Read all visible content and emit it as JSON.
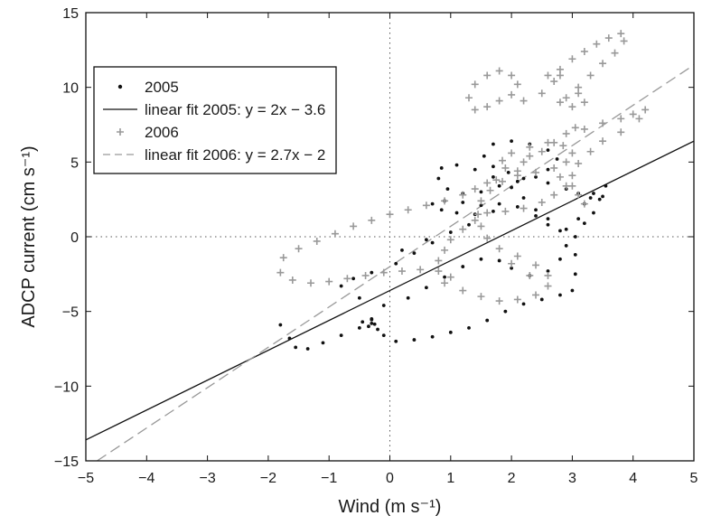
{
  "chart_data": {
    "type": "scatter",
    "xlabel": "Wind (m s⁻¹)",
    "ylabel": "ADCP current (cm s⁻¹)",
    "xlim": [
      -5,
      5
    ],
    "ylim": [
      -15,
      15
    ],
    "xticks": [
      -5,
      -4,
      -3,
      -2,
      -1,
      0,
      1,
      2,
      3,
      4,
      5
    ],
    "yticks": [
      -15,
      -10,
      -5,
      0,
      5,
      10,
      15
    ],
    "xtick_labels": [
      "−5",
      "−4",
      "−3",
      "−2",
      "−1",
      "0",
      "1",
      "2",
      "3",
      "4",
      "5"
    ],
    "ytick_labels": [
      "−15",
      "−10",
      "−5",
      "0",
      "5",
      "10",
      "15"
    ],
    "grid": false,
    "reference_lines": [
      {
        "axis": "x",
        "value": 0,
        "style": "dotted"
      },
      {
        "axis": "y",
        "value": 0,
        "style": "dotted"
      }
    ],
    "legend": {
      "position": "upper-left",
      "entries": [
        {
          "label": "2005",
          "marker": "dot",
          "color": "#111111"
        },
        {
          "label": "linear fit 2005: y = 2x − 3.6",
          "marker": "solid-line",
          "color": "#111111"
        },
        {
          "label": "2006",
          "marker": "plus",
          "color": "#999999"
        },
        {
          "label": "linear fit 2006: y = 2.7x − 2",
          "marker": "dashed-line",
          "color": "#999999"
        }
      ]
    },
    "series": [
      {
        "name": "2005",
        "kind": "scatter",
        "marker": "dot",
        "color": "#111111",
        "points": [
          [
            -1.8,
            -5.9
          ],
          [
            -1.65,
            -6.8
          ],
          [
            -1.55,
            -7.4
          ],
          [
            -1.35,
            -7.5
          ],
          [
            -1.1,
            -7.1
          ],
          [
            -0.8,
            -6.6
          ],
          [
            -0.5,
            -6.1
          ],
          [
            -0.3,
            -5.8
          ],
          [
            -0.2,
            -6.2
          ],
          [
            -0.1,
            -6.6
          ],
          [
            0.1,
            -7.0
          ],
          [
            0.4,
            -6.9
          ],
          [
            0.7,
            -6.7
          ],
          [
            1.0,
            -6.4
          ],
          [
            1.3,
            -6.1
          ],
          [
            1.6,
            -5.6
          ],
          [
            1.9,
            -5.0
          ],
          [
            2.2,
            -4.5
          ],
          [
            2.5,
            -4.2
          ],
          [
            2.8,
            -3.9
          ],
          [
            3.0,
            -3.6
          ],
          [
            3.05,
            -2.5
          ],
          [
            3.05,
            -1.2
          ],
          [
            3.05,
            0.0
          ],
          [
            3.1,
            1.2
          ],
          [
            3.2,
            2.2
          ],
          [
            3.35,
            2.9
          ],
          [
            3.45,
            2.5
          ],
          [
            3.35,
            1.6
          ],
          [
            3.2,
            0.9
          ],
          [
            2.9,
            0.5
          ],
          [
            2.6,
            0.8
          ],
          [
            2.4,
            1.4
          ],
          [
            2.1,
            2.0
          ],
          [
            1.8,
            2.2
          ],
          [
            1.5,
            2.1
          ],
          [
            1.2,
            2.3
          ],
          [
            0.9,
            2.4
          ],
          [
            0.7,
            2.2
          ],
          [
            0.85,
            1.8
          ],
          [
            1.1,
            1.6
          ],
          [
            1.4,
            1.5
          ],
          [
            1.7,
            1.7
          ],
          [
            1.3,
            0.8
          ],
          [
            1.0,
            0.3
          ],
          [
            0.7,
            -0.4
          ],
          [
            0.4,
            -1.1
          ],
          [
            0.1,
            -1.8
          ],
          [
            -0.3,
            -2.4
          ],
          [
            -0.6,
            -2.8
          ],
          [
            -0.8,
            -3.3
          ],
          [
            -0.5,
            -4.1
          ],
          [
            -0.1,
            -4.6
          ],
          [
            0.3,
            -4.1
          ],
          [
            0.6,
            -3.4
          ],
          [
            0.9,
            -2.7
          ],
          [
            1.2,
            -2.0
          ],
          [
            1.5,
            -1.5
          ],
          [
            1.8,
            -1.6
          ],
          [
            2.0,
            -2.1
          ],
          [
            2.3,
            -2.6
          ],
          [
            2.6,
            -2.3
          ],
          [
            2.8,
            -1.5
          ],
          [
            2.9,
            -0.6
          ],
          [
            2.8,
            0.4
          ],
          [
            2.6,
            1.2
          ],
          [
            2.4,
            1.8
          ],
          [
            2.2,
            2.6
          ],
          [
            2.0,
            3.3
          ],
          [
            1.7,
            4.0
          ],
          [
            1.4,
            4.5
          ],
          [
            1.1,
            4.8
          ],
          [
            0.85,
            4.6
          ],
          [
            0.8,
            3.9
          ],
          [
            0.95,
            3.2
          ],
          [
            1.2,
            2.9
          ],
          [
            1.5,
            3.0
          ],
          [
            1.8,
            3.4
          ],
          [
            2.1,
            3.7
          ],
          [
            2.4,
            4.0
          ],
          [
            2.6,
            4.5
          ],
          [
            2.75,
            5.2
          ],
          [
            2.6,
            5.8
          ],
          [
            2.3,
            6.2
          ],
          [
            2.0,
            6.4
          ],
          [
            1.7,
            6.2
          ],
          [
            1.55,
            5.4
          ],
          [
            1.7,
            4.7
          ],
          [
            1.95,
            4.3
          ],
          [
            2.2,
            3.9
          ],
          [
            2.6,
            3.6
          ],
          [
            2.9,
            3.2
          ],
          [
            3.1,
            2.9
          ],
          [
            3.3,
            2.6
          ],
          [
            3.5,
            2.7
          ],
          [
            3.55,
            3.4
          ],
          [
            0.2,
            -0.9
          ],
          [
            0.6,
            -0.2
          ],
          [
            -0.3,
            -5.5
          ],
          [
            -0.25,
            -5.85
          ],
          [
            -0.35,
            -6.0
          ],
          [
            -0.45,
            -5.7
          ],
          [
            -0.3,
            -5.55
          ]
        ]
      },
      {
        "name": "linear fit 2005: y = 2x − 3.6",
        "kind": "line",
        "style": "solid",
        "color": "#111111",
        "points": [
          [
            -5,
            -13.6
          ],
          [
            5,
            6.4
          ]
        ]
      },
      {
        "name": "2006",
        "kind": "scatter",
        "marker": "plus",
        "color": "#999999",
        "points": [
          [
            -1.8,
            -2.4
          ],
          [
            -1.75,
            -1.4
          ],
          [
            -1.5,
            -0.8
          ],
          [
            -1.2,
            -0.3
          ],
          [
            -0.9,
            0.2
          ],
          [
            -0.6,
            0.7
          ],
          [
            -0.3,
            1.1
          ],
          [
            0.0,
            1.5
          ],
          [
            0.3,
            1.8
          ],
          [
            0.6,
            2.1
          ],
          [
            0.9,
            2.4
          ],
          [
            1.2,
            2.8
          ],
          [
            1.4,
            3.2
          ],
          [
            1.6,
            3.6
          ],
          [
            1.75,
            3.8
          ],
          [
            -1.6,
            -2.9
          ],
          [
            -1.3,
            -3.1
          ],
          [
            -1.0,
            -3.0
          ],
          [
            -0.7,
            -2.8
          ],
          [
            -0.4,
            -2.6
          ],
          [
            -0.1,
            -2.4
          ],
          [
            0.2,
            -2.3
          ],
          [
            0.5,
            -2.2
          ],
          [
            0.8,
            -2.3
          ],
          [
            1.0,
            -2.7
          ],
          [
            0.9,
            -3.1
          ],
          [
            1.2,
            -3.6
          ],
          [
            1.5,
            -4.0
          ],
          [
            1.8,
            -4.3
          ],
          [
            2.1,
            -4.2
          ],
          [
            2.4,
            -3.9
          ],
          [
            2.6,
            -3.3
          ],
          [
            2.6,
            -2.6
          ],
          [
            2.4,
            -1.9
          ],
          [
            2.1,
            -1.3
          ],
          [
            1.8,
            -0.8
          ],
          [
            1.6,
            -0.1
          ],
          [
            1.5,
            0.7
          ],
          [
            1.45,
            1.5
          ],
          [
            1.5,
            2.4
          ],
          [
            1.65,
            3.1
          ],
          [
            1.85,
            3.7
          ],
          [
            2.1,
            4.1
          ],
          [
            2.4,
            4.3
          ],
          [
            2.7,
            4.6
          ],
          [
            2.9,
            5.0
          ],
          [
            3.0,
            5.6
          ],
          [
            2.85,
            6.1
          ],
          [
            2.6,
            6.3
          ],
          [
            2.3,
            6.0
          ],
          [
            2.0,
            5.6
          ],
          [
            1.85,
            5.1
          ],
          [
            1.9,
            4.6
          ],
          [
            2.1,
            4.4
          ],
          [
            2.2,
            5.0
          ],
          [
            2.3,
            5.4
          ],
          [
            2.5,
            5.7
          ],
          [
            2.7,
            6.3
          ],
          [
            2.9,
            6.9
          ],
          [
            3.05,
            7.3
          ],
          [
            1.4,
            8.5
          ],
          [
            1.3,
            9.3
          ],
          [
            1.4,
            10.2
          ],
          [
            1.6,
            10.8
          ],
          [
            1.8,
            11.1
          ],
          [
            2.0,
            10.8
          ],
          [
            2.1,
            10.2
          ],
          [
            2.0,
            9.5
          ],
          [
            1.8,
            9.1
          ],
          [
            1.6,
            8.7
          ],
          [
            2.2,
            9.1
          ],
          [
            2.5,
            9.6
          ],
          [
            2.7,
            10.4
          ],
          [
            2.8,
            11.2
          ],
          [
            3.0,
            11.9
          ],
          [
            3.2,
            12.4
          ],
          [
            3.4,
            12.9
          ],
          [
            3.6,
            13.3
          ],
          [
            3.8,
            13.6
          ],
          [
            3.85,
            13.1
          ],
          [
            3.7,
            12.3
          ],
          [
            3.5,
            11.6
          ],
          [
            3.3,
            10.8
          ],
          [
            3.1,
            10.0
          ],
          [
            2.9,
            9.3
          ],
          [
            2.6,
            10.8
          ],
          [
            2.8,
            10.8
          ],
          [
            3.1,
            9.6
          ],
          [
            3.2,
            9.0
          ],
          [
            3.0,
            8.7
          ],
          [
            2.8,
            9.0
          ],
          [
            3.2,
            7.2
          ],
          [
            3.5,
            7.6
          ],
          [
            3.8,
            7.9
          ],
          [
            4.0,
            8.2
          ],
          [
            4.2,
            8.5
          ],
          [
            4.1,
            7.9
          ],
          [
            3.8,
            7.0
          ],
          [
            3.5,
            6.4
          ],
          [
            3.3,
            5.7
          ],
          [
            3.1,
            4.9
          ],
          [
            3.0,
            4.1
          ],
          [
            2.9,
            3.4
          ],
          [
            2.7,
            2.8
          ],
          [
            2.5,
            2.3
          ],
          [
            2.2,
            1.9
          ],
          [
            1.9,
            1.7
          ],
          [
            1.6,
            1.6
          ],
          [
            1.4,
            1.1
          ],
          [
            1.2,
            0.5
          ],
          [
            1.0,
            -0.2
          ],
          [
            0.9,
            -0.9
          ],
          [
            0.8,
            -1.6
          ],
          [
            2.8,
            4.0
          ],
          [
            3.0,
            3.4
          ],
          [
            3.1,
            2.8
          ],
          [
            3.2,
            2.2
          ],
          [
            2.0,
            -1.8
          ],
          [
            2.3,
            -2.6
          ]
        ]
      },
      {
        "name": "linear fit 2006: y = 2.7x − 2",
        "kind": "line",
        "style": "dashed",
        "color": "#999999",
        "points": [
          [
            -4.815,
            -15
          ],
          [
            5,
            11.5
          ]
        ]
      }
    ]
  }
}
